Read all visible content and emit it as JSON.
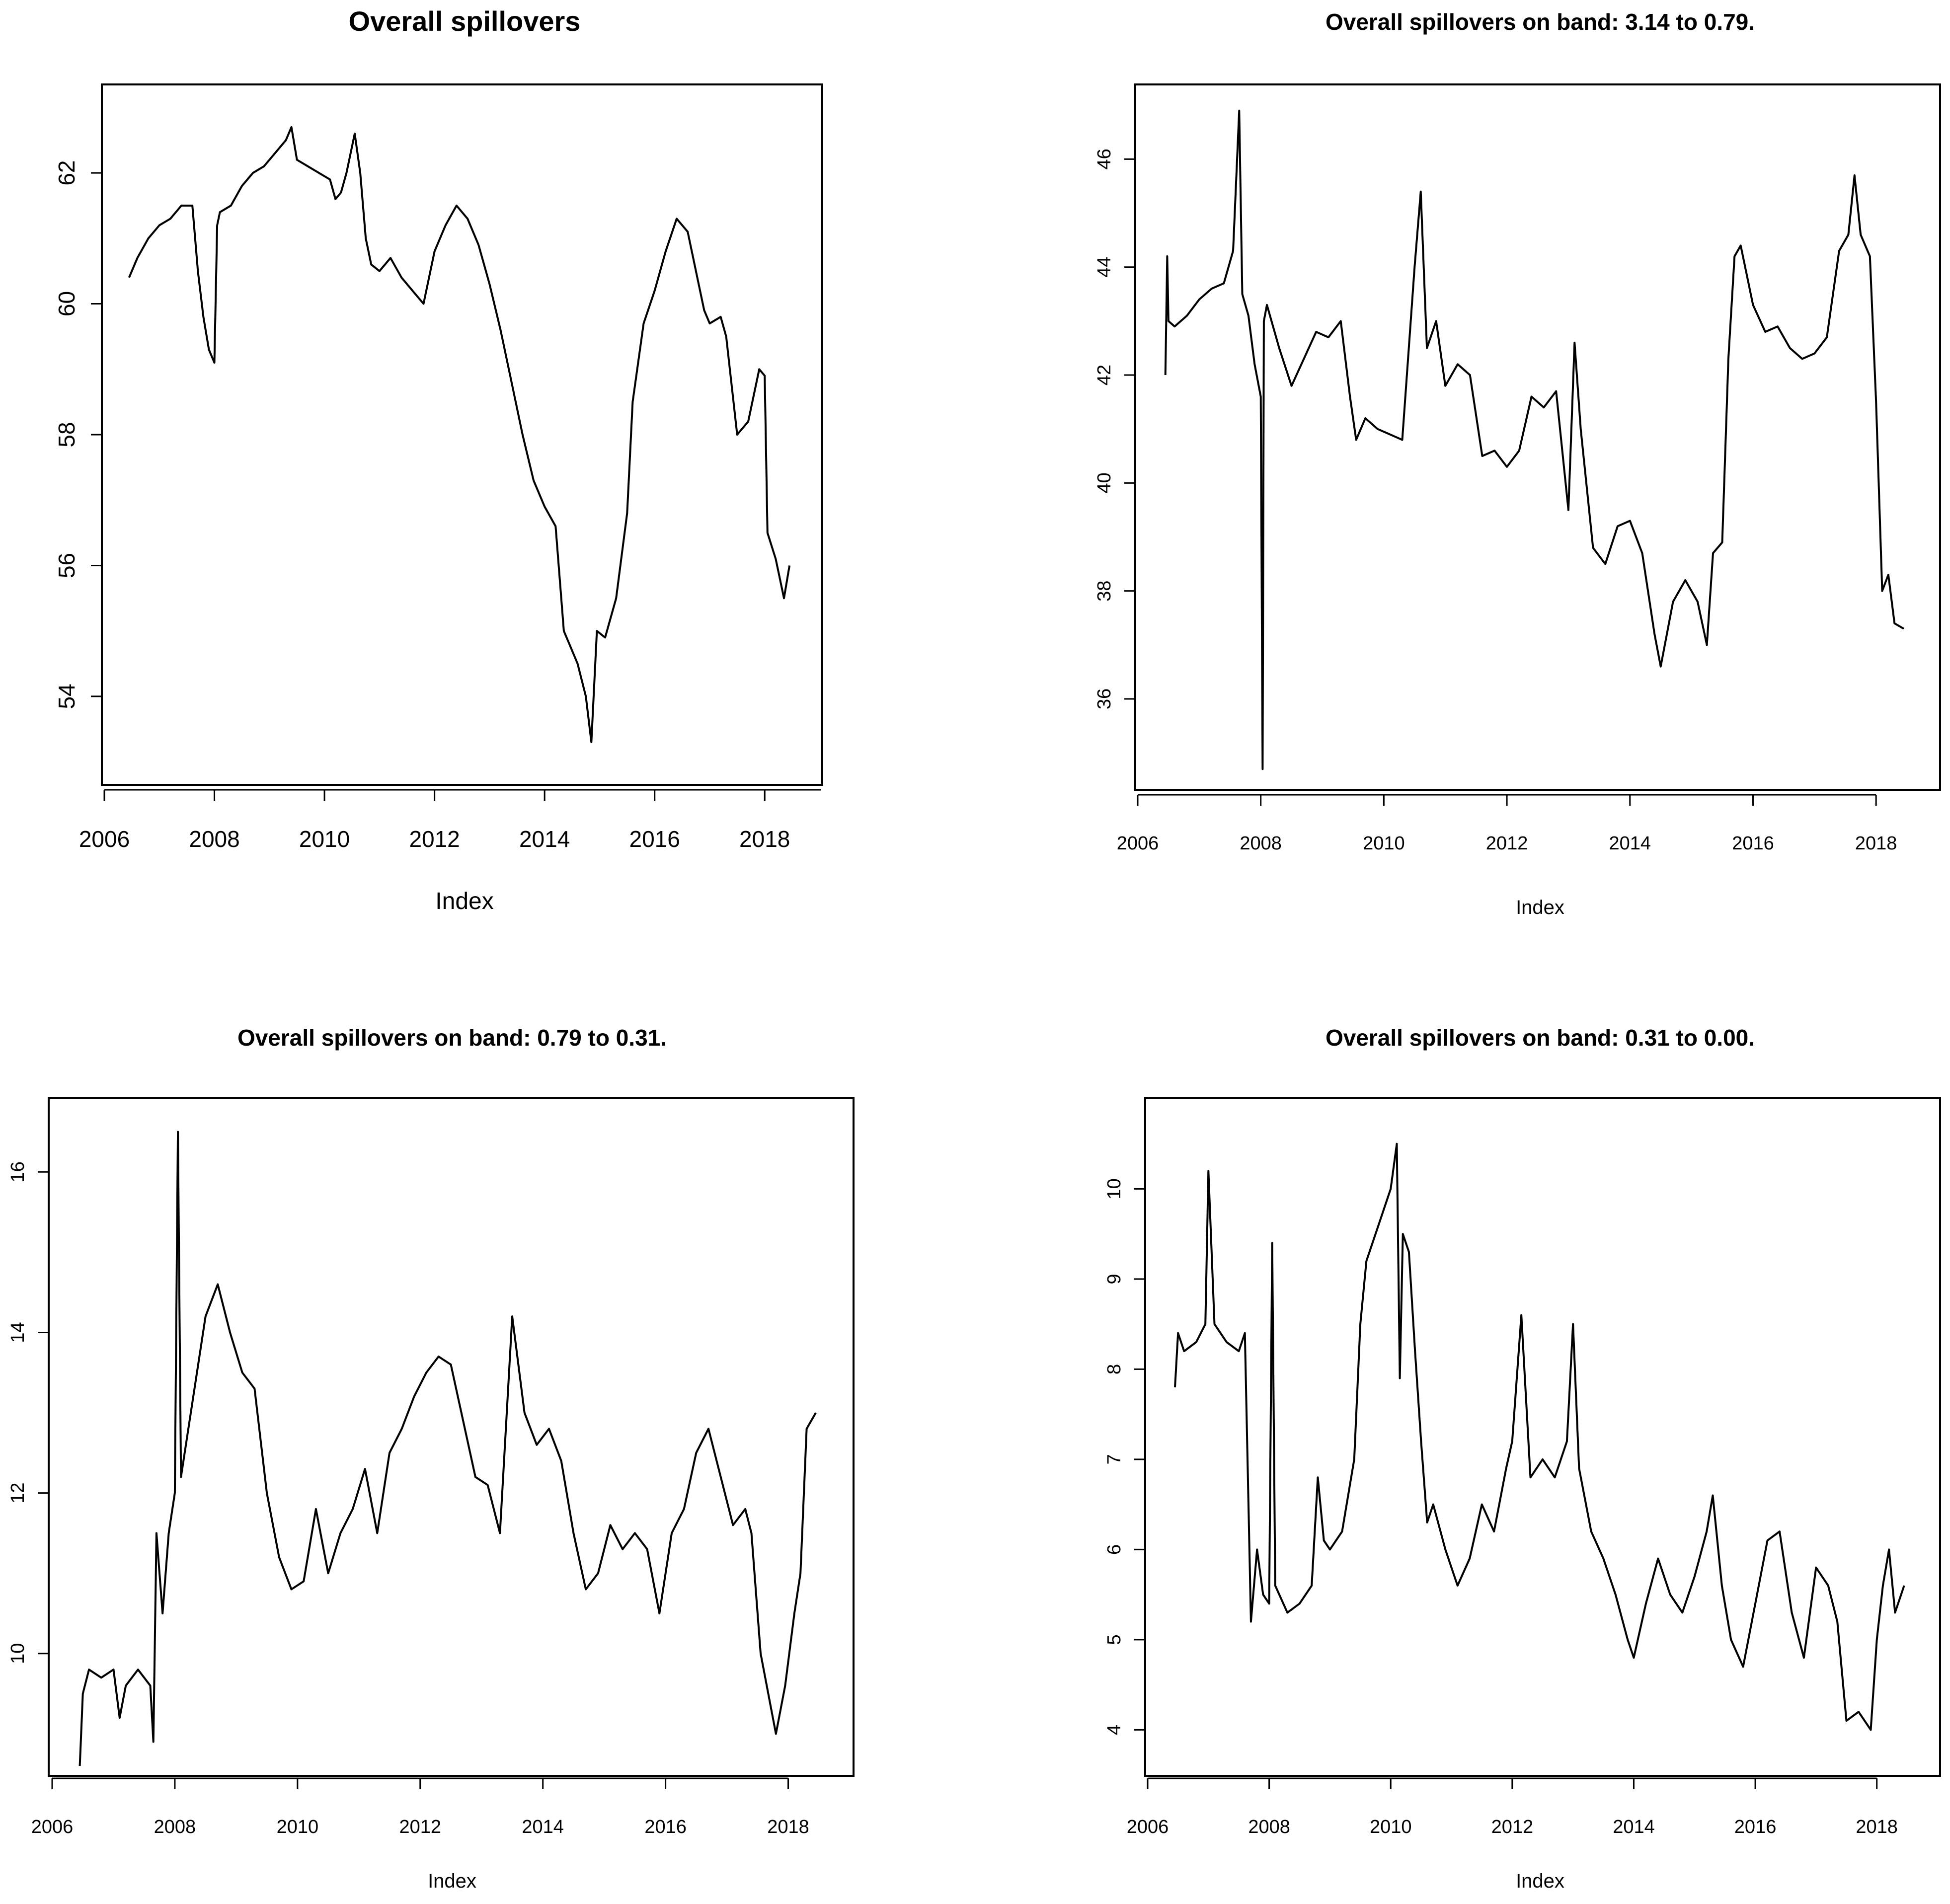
{
  "chart_data": [
    {
      "type": "line",
      "title": "Overall spillovers",
      "xlabel": "Index",
      "ylabel": "",
      "xlim": [
        2006.0,
        2019.0
      ],
      "ylim": [
        52.8,
        63.2
      ],
      "xticks": [
        "2006",
        "2008",
        "2010",
        "2012",
        "2014",
        "2016",
        "2018"
      ],
      "yticks": [
        "54",
        "56",
        "58",
        "60",
        "62"
      ],
      "grid": false,
      "series": [
        {
          "x": [
            2006.45,
            2006.6,
            2006.8,
            2007.0,
            2007.2,
            2007.4,
            2007.6,
            2007.7,
            2007.8,
            2007.9,
            2008.0,
            2008.05,
            2008.1,
            2008.3,
            2008.5,
            2008.7,
            2008.9,
            2009.1,
            2009.3,
            2009.4,
            2009.5,
            2009.7,
            2009.9,
            2010.1,
            2010.2,
            2010.3,
            2010.4,
            2010.55,
            2010.65,
            2010.75,
            2010.85,
            2011.0,
            2011.2,
            2011.4,
            2011.6,
            2011.8,
            2012.0,
            2012.2,
            2012.4,
            2012.6,
            2012.8,
            2013.0,
            2013.2,
            2013.4,
            2013.6,
            2013.8,
            2014.0,
            2014.2,
            2014.35,
            2014.45,
            2014.6,
            2014.75,
            2014.85,
            2014.95,
            2015.1,
            2015.3,
            2015.5,
            2015.6,
            2015.8,
            2016.0,
            2016.2,
            2016.4,
            2016.6,
            2016.8,
            2016.9,
            2017.0,
            2017.2,
            2017.3,
            2017.5,
            2017.7,
            2017.9,
            2018.0,
            2018.05,
            2018.2,
            2018.35,
            2018.45
          ],
          "y": [
            60.4,
            60.7,
            61.0,
            61.2,
            61.3,
            61.5,
            61.5,
            60.5,
            59.8,
            59.3,
            59.1,
            61.2,
            61.4,
            61.5,
            61.8,
            62.0,
            62.1,
            62.3,
            62.5,
            62.7,
            62.2,
            62.1,
            62.0,
            61.9,
            61.6,
            61.7,
            62.0,
            62.6,
            62.0,
            61.0,
            60.6,
            60.5,
            60.7,
            60.4,
            60.2,
            60.0,
            60.8,
            61.2,
            61.5,
            61.3,
            60.9,
            60.3,
            59.6,
            58.8,
            58.0,
            57.3,
            56.9,
            56.6,
            55.0,
            54.8,
            54.5,
            54.0,
            53.3,
            55.0,
            54.9,
            55.5,
            56.8,
            58.5,
            59.7,
            60.2,
            60.8,
            61.3,
            61.1,
            60.3,
            59.9,
            59.7,
            59.8,
            59.5,
            58.0,
            58.2,
            59.0,
            58.9,
            56.5,
            56.1,
            55.5,
            56.0
          ]
        }
      ]
    },
    {
      "type": "line",
      "title": "Overall spillovers on band: 3.14 to 0.79.",
      "xlabel": "Index",
      "ylabel": "",
      "xlim": [
        2006.0,
        2019.0
      ],
      "ylim": [
        34.5,
        47.2
      ],
      "xticks": [
        "2006",
        "2008",
        "2010",
        "2012",
        "2014",
        "2016",
        "2018"
      ],
      "yticks": [
        "36",
        "38",
        "40",
        "42",
        "44",
        "46"
      ],
      "grid": false,
      "series": [
        {
          "x": [
            2006.45,
            2006.48,
            2006.5,
            2006.6,
            2006.8,
            2007.0,
            2007.2,
            2007.4,
            2007.55,
            2007.65,
            2007.7,
            2007.8,
            2007.9,
            2008.0,
            2008.03,
            2008.05,
            2008.1,
            2008.3,
            2008.5,
            2008.7,
            2008.9,
            2009.1,
            2009.3,
            2009.45,
            2009.55,
            2009.7,
            2009.9,
            2010.1,
            2010.3,
            2010.5,
            2010.6,
            2010.7,
            2010.85,
            2011.0,
            2011.2,
            2011.4,
            2011.6,
            2011.8,
            2012.0,
            2012.2,
            2012.4,
            2012.6,
            2012.8,
            2013.0,
            2013.1,
            2013.2,
            2013.4,
            2013.6,
            2013.8,
            2014.0,
            2014.2,
            2014.4,
            2014.5,
            2014.7,
            2014.9,
            2015.1,
            2015.25,
            2015.35,
            2015.5,
            2015.6,
            2015.7,
            2015.8,
            2016.0,
            2016.2,
            2016.4,
            2016.6,
            2016.8,
            2017.0,
            2017.2,
            2017.4,
            2017.55,
            2017.65,
            2017.75,
            2017.9,
            2018.0,
            2018.1,
            2018.2,
            2018.3,
            2018.45
          ],
          "y": [
            42.0,
            44.2,
            43.0,
            42.9,
            43.1,
            43.4,
            43.6,
            43.7,
            44.3,
            46.9,
            43.5,
            43.1,
            42.2,
            41.6,
            34.7,
            43.0,
            43.3,
            42.5,
            41.8,
            42.3,
            42.8,
            42.7,
            43.0,
            41.6,
            40.8,
            41.2,
            41.0,
            40.9,
            40.8,
            44.0,
            45.4,
            42.5,
            43.0,
            41.8,
            42.2,
            42.0,
            40.5,
            40.6,
            40.3,
            40.6,
            41.6,
            41.4,
            41.7,
            39.5,
            42.6,
            41.0,
            38.8,
            38.5,
            39.2,
            39.3,
            38.7,
            37.2,
            36.6,
            37.8,
            38.2,
            37.8,
            37.0,
            38.7,
            38.9,
            42.3,
            44.2,
            44.4,
            43.3,
            42.8,
            42.9,
            42.5,
            42.3,
            42.4,
            42.7,
            44.3,
            44.6,
            45.7,
            44.6,
            44.2,
            41.5,
            38.0,
            38.3,
            37.4,
            37.3
          ]
        }
      ]
    },
    {
      "type": "line",
      "title": "Overall spillovers on band: 0.79 to 0.31.",
      "xlabel": "Index",
      "ylabel": "",
      "xlim": [
        2006.0,
        2019.0
      ],
      "ylim": [
        8.6,
        16.8
      ],
      "xticks": [
        "2006",
        "2008",
        "2010",
        "2012",
        "2014",
        "2016",
        "2018"
      ],
      "yticks": [
        "10",
        "12",
        "14",
        "16"
      ],
      "grid": false,
      "series": [
        {
          "x": [
            2006.45,
            2006.5,
            2006.6,
            2006.8,
            2007.0,
            2007.1,
            2007.2,
            2007.4,
            2007.6,
            2007.65,
            2007.7,
            2007.8,
            2007.9,
            2008.0,
            2008.05,
            2008.1,
            2008.3,
            2008.5,
            2008.7,
            2008.9,
            2009.1,
            2009.3,
            2009.5,
            2009.7,
            2009.9,
            2010.1,
            2010.3,
            2010.5,
            2010.7,
            2010.9,
            2011.1,
            2011.3,
            2011.5,
            2011.7,
            2011.9,
            2012.1,
            2012.3,
            2012.5,
            2012.7,
            2012.9,
            2013.1,
            2013.3,
            2013.5,
            2013.7,
            2013.9,
            2014.1,
            2014.3,
            2014.5,
            2014.7,
            2014.9,
            2015.1,
            2015.3,
            2015.5,
            2015.7,
            2015.9,
            2016.1,
            2016.3,
            2016.5,
            2016.7,
            2016.9,
            2017.1,
            2017.3,
            2017.4,
            2017.55,
            2017.65,
            2017.8,
            2017.95,
            2018.1,
            2018.2,
            2018.3,
            2018.45
          ],
          "y": [
            8.6,
            9.5,
            9.8,
            9.7,
            9.8,
            9.2,
            9.6,
            9.8,
            9.6,
            8.9,
            11.5,
            10.5,
            11.5,
            12.0,
            16.5,
            12.2,
            13.2,
            14.2,
            14.6,
            14.0,
            13.5,
            13.3,
            12.0,
            11.2,
            10.8,
            10.9,
            11.8,
            11.0,
            11.5,
            11.8,
            12.3,
            11.5,
            12.5,
            12.8,
            13.2,
            13.5,
            13.7,
            13.6,
            12.9,
            12.2,
            12.1,
            11.5,
            14.2,
            13.0,
            12.6,
            12.8,
            12.4,
            11.5,
            10.8,
            11.0,
            11.6,
            11.3,
            11.5,
            11.3,
            10.5,
            11.5,
            11.8,
            12.5,
            12.8,
            12.2,
            11.6,
            11.8,
            11.5,
            10.0,
            9.6,
            9.0,
            9.6,
            10.5,
            11.0,
            12.8,
            13.0
          ]
        }
      ]
    },
    {
      "type": "line",
      "title": "Overall spillovers on band: 0.31 to 0.00.",
      "xlabel": "Index",
      "ylabel": "",
      "xlim": [
        2006.0,
        2019.0
      ],
      "ylim": [
        3.6,
        10.9
      ],
      "xticks": [
        "2006",
        "2008",
        "2010",
        "2012",
        "2014",
        "2016",
        "2018"
      ],
      "yticks": [
        "4",
        "5",
        "6",
        "7",
        "8",
        "9",
        "10"
      ],
      "grid": false,
      "series": [
        {
          "x": [
            2006.45,
            2006.5,
            2006.6,
            2006.8,
            2006.95,
            2007.0,
            2007.1,
            2007.3,
            2007.5,
            2007.6,
            2007.7,
            2007.8,
            2007.9,
            2008.0,
            2008.05,
            2008.1,
            2008.3,
            2008.5,
            2008.7,
            2008.8,
            2008.9,
            2009.0,
            2009.2,
            2009.4,
            2009.5,
            2009.6,
            2009.8,
            2010.0,
            2010.1,
            2010.15,
            2010.2,
            2010.3,
            2010.4,
            2010.5,
            2010.6,
            2010.7,
            2010.9,
            2011.0,
            2011.1,
            2011.3,
            2011.5,
            2011.7,
            2011.9,
            2012.0,
            2012.15,
            2012.3,
            2012.5,
            2012.7,
            2012.9,
            2013.0,
            2013.1,
            2013.3,
            2013.5,
            2013.7,
            2013.9,
            2014.0,
            2014.2,
            2014.4,
            2014.6,
            2014.8,
            2015.0,
            2015.2,
            2015.3,
            2015.45,
            2015.6,
            2015.8,
            2016.0,
            2016.2,
            2016.4,
            2016.6,
            2016.8,
            2017.0,
            2017.2,
            2017.35,
            2017.5,
            2017.7,
            2017.9,
            2018.0,
            2018.1,
            2018.2,
            2018.3,
            2018.45
          ],
          "y": [
            7.8,
            8.4,
            8.2,
            8.3,
            8.5,
            10.2,
            8.5,
            8.3,
            8.2,
            8.4,
            5.2,
            6.0,
            5.5,
            5.4,
            9.4,
            5.6,
            5.3,
            5.4,
            5.6,
            6.8,
            6.1,
            6.0,
            6.2,
            7.0,
            8.5,
            9.2,
            9.6,
            10.0,
            10.5,
            7.9,
            9.5,
            9.3,
            8.2,
            7.2,
            6.3,
            6.5,
            6.0,
            5.8,
            5.6,
            5.9,
            6.5,
            6.2,
            6.9,
            7.2,
            8.6,
            6.8,
            7.0,
            6.8,
            7.2,
            8.5,
            6.9,
            6.2,
            5.9,
            5.5,
            5.0,
            4.8,
            5.4,
            5.9,
            5.5,
            5.3,
            5.7,
            6.2,
            6.6,
            5.6,
            5.0,
            4.7,
            5.4,
            6.1,
            6.2,
            5.3,
            4.8,
            5.8,
            5.6,
            5.2,
            4.1,
            4.2,
            4.0,
            5.0,
            5.6,
            6.0,
            5.3,
            5.6
          ]
        }
      ]
    }
  ]
}
